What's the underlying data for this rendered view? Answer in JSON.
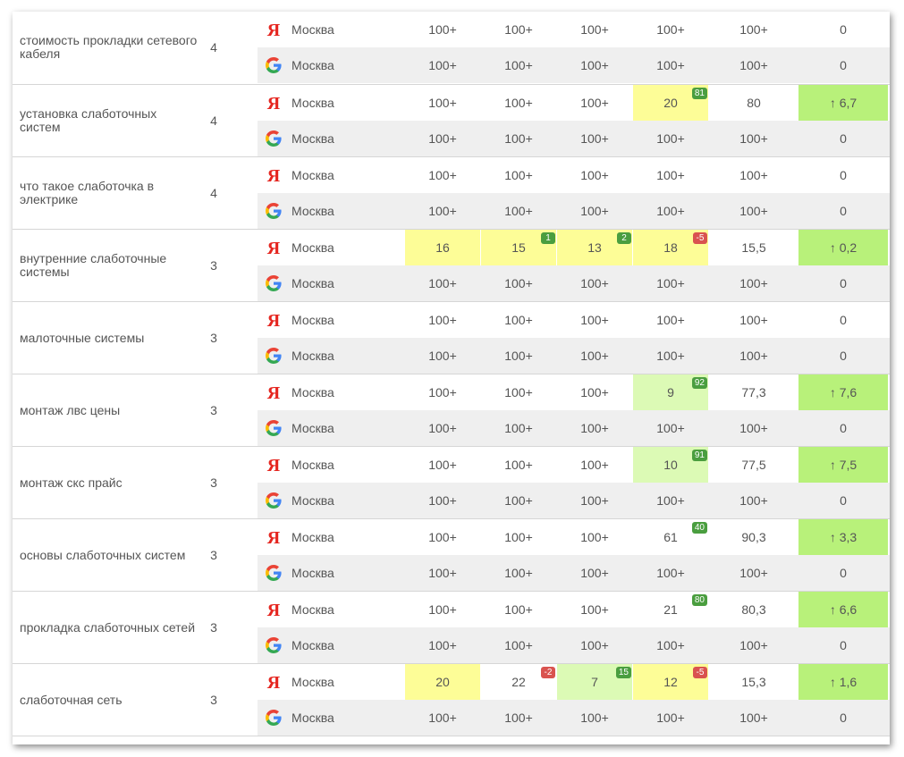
{
  "region_label": "Москва",
  "colors": {
    "yellow": "#fdfd97",
    "light_green": "#dcfab5",
    "green": "#b8f17a",
    "badge_positive": "#4a9e3f",
    "badge_negative": "#d9534f"
  },
  "engines": {
    "yandex": "yandex-icon",
    "google": "google-icon"
  },
  "keywords": [
    {
      "phrase": "стоимость прокладки сетевого кабеля",
      "count": "4",
      "yandex": {
        "cells": [
          {
            "v": "100+"
          },
          {
            "v": "100+"
          },
          {
            "v": "100+"
          },
          {
            "v": "100+"
          }
        ],
        "avg": "100+",
        "trend": {
          "v": "0"
        }
      },
      "google": {
        "cells": [
          {
            "v": "100+"
          },
          {
            "v": "100+"
          },
          {
            "v": "100+"
          },
          {
            "v": "100+"
          }
        ],
        "avg": "100+",
        "trend": {
          "v": "0"
        }
      }
    },
    {
      "phrase": "установка слаботочных систем",
      "count": "4",
      "yandex": {
        "cells": [
          {
            "v": "100+"
          },
          {
            "v": "100+"
          },
          {
            "v": "100+"
          },
          {
            "v": "20",
            "bg": "yellow",
            "badge": "81",
            "badge_type": "pos"
          }
        ],
        "avg": "80",
        "trend": {
          "v": "↑ 6,7",
          "bg": "green"
        }
      },
      "google": {
        "cells": [
          {
            "v": "100+"
          },
          {
            "v": "100+"
          },
          {
            "v": "100+"
          },
          {
            "v": "100+"
          }
        ],
        "avg": "100+",
        "trend": {
          "v": "0"
        }
      }
    },
    {
      "phrase": "что такое слаботочка в электрике",
      "count": "4",
      "yandex": {
        "cells": [
          {
            "v": "100+"
          },
          {
            "v": "100+"
          },
          {
            "v": "100+"
          },
          {
            "v": "100+"
          }
        ],
        "avg": "100+",
        "trend": {
          "v": "0"
        }
      },
      "google": {
        "cells": [
          {
            "v": "100+"
          },
          {
            "v": "100+"
          },
          {
            "v": "100+"
          },
          {
            "v": "100+"
          }
        ],
        "avg": "100+",
        "trend": {
          "v": "0"
        }
      }
    },
    {
      "phrase": "внутренние слаботочные системы",
      "count": "3",
      "yandex": {
        "cells": [
          {
            "v": "16",
            "bg": "yellow"
          },
          {
            "v": "15",
            "bg": "yellow",
            "badge": "1",
            "badge_type": "pos"
          },
          {
            "v": "13",
            "bg": "yellow",
            "badge": "2",
            "badge_type": "pos"
          },
          {
            "v": "18",
            "bg": "yellow",
            "badge": "-5",
            "badge_type": "neg"
          }
        ],
        "avg": "15,5",
        "trend": {
          "v": "↑ 0,2",
          "bg": "green"
        }
      },
      "google": {
        "cells": [
          {
            "v": "100+"
          },
          {
            "v": "100+"
          },
          {
            "v": "100+"
          },
          {
            "v": "100+"
          }
        ],
        "avg": "100+",
        "trend": {
          "v": "0"
        }
      }
    },
    {
      "phrase": "малоточные системы",
      "count": "3",
      "yandex": {
        "cells": [
          {
            "v": "100+"
          },
          {
            "v": "100+"
          },
          {
            "v": "100+"
          },
          {
            "v": "100+"
          }
        ],
        "avg": "100+",
        "trend": {
          "v": "0"
        }
      },
      "google": {
        "cells": [
          {
            "v": "100+"
          },
          {
            "v": "100+"
          },
          {
            "v": "100+"
          },
          {
            "v": "100+"
          }
        ],
        "avg": "100+",
        "trend": {
          "v": "0"
        }
      }
    },
    {
      "phrase": "монтаж лвс цены",
      "count": "3",
      "yandex": {
        "cells": [
          {
            "v": "100+"
          },
          {
            "v": "100+"
          },
          {
            "v": "100+"
          },
          {
            "v": "9",
            "bg": "light_green",
            "badge": "92",
            "badge_type": "pos"
          }
        ],
        "avg": "77,3",
        "trend": {
          "v": "↑ 7,6",
          "bg": "green"
        }
      },
      "google": {
        "cells": [
          {
            "v": "100+"
          },
          {
            "v": "100+"
          },
          {
            "v": "100+"
          },
          {
            "v": "100+"
          }
        ],
        "avg": "100+",
        "trend": {
          "v": "0"
        }
      }
    },
    {
      "phrase": "монтаж скс прайс",
      "count": "3",
      "yandex": {
        "cells": [
          {
            "v": "100+"
          },
          {
            "v": "100+"
          },
          {
            "v": "100+"
          },
          {
            "v": "10",
            "bg": "light_green",
            "badge": "91",
            "badge_type": "pos"
          }
        ],
        "avg": "77,5",
        "trend": {
          "v": "↑ 7,5",
          "bg": "green"
        }
      },
      "google": {
        "cells": [
          {
            "v": "100+"
          },
          {
            "v": "100+"
          },
          {
            "v": "100+"
          },
          {
            "v": "100+"
          }
        ],
        "avg": "100+",
        "trend": {
          "v": "0"
        }
      }
    },
    {
      "phrase": "основы слаботочных систем",
      "count": "3",
      "yandex": {
        "cells": [
          {
            "v": "100+"
          },
          {
            "v": "100+"
          },
          {
            "v": "100+"
          },
          {
            "v": "61",
            "badge": "40",
            "badge_type": "pos"
          }
        ],
        "avg": "90,3",
        "trend": {
          "v": "↑ 3,3",
          "bg": "green"
        }
      },
      "google": {
        "cells": [
          {
            "v": "100+"
          },
          {
            "v": "100+"
          },
          {
            "v": "100+"
          },
          {
            "v": "100+"
          }
        ],
        "avg": "100+",
        "trend": {
          "v": "0"
        }
      }
    },
    {
      "phrase": "прокладка слаботочных сетей",
      "count": "3",
      "yandex": {
        "cells": [
          {
            "v": "100+"
          },
          {
            "v": "100+"
          },
          {
            "v": "100+"
          },
          {
            "v": "21",
            "badge": "80",
            "badge_type": "pos"
          }
        ],
        "avg": "80,3",
        "trend": {
          "v": "↑ 6,6",
          "bg": "green"
        }
      },
      "google": {
        "cells": [
          {
            "v": "100+"
          },
          {
            "v": "100+"
          },
          {
            "v": "100+"
          },
          {
            "v": "100+"
          }
        ],
        "avg": "100+",
        "trend": {
          "v": "0"
        }
      }
    },
    {
      "phrase": "слаботочная сеть",
      "count": "3",
      "yandex": {
        "cells": [
          {
            "v": "20",
            "bg": "yellow"
          },
          {
            "v": "22",
            "badge": "-2",
            "badge_type": "neg"
          },
          {
            "v": "7",
            "bg": "light_green",
            "badge": "15",
            "badge_type": "pos"
          },
          {
            "v": "12",
            "bg": "yellow",
            "badge": "-5",
            "badge_type": "neg"
          }
        ],
        "avg": "15,3",
        "trend": {
          "v": "↑ 1,6",
          "bg": "green"
        }
      },
      "google": {
        "cells": [
          {
            "v": "100+"
          },
          {
            "v": "100+"
          },
          {
            "v": "100+"
          },
          {
            "v": "100+"
          }
        ],
        "avg": "100+",
        "trend": {
          "v": "0"
        }
      }
    }
  ]
}
